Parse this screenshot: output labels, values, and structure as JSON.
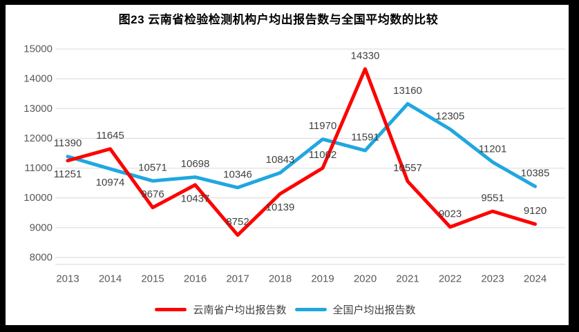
{
  "window": {
    "frame_color": "#000000",
    "background": "#ffffff"
  },
  "chart_data": {
    "type": "line",
    "title": "图23 云南省检验检测机构户均出报告数与全国平均数的比较",
    "categories": [
      "2013",
      "2014",
      "2015",
      "2016",
      "2017",
      "2018",
      "2019",
      "2020",
      "2021",
      "2022",
      "2023",
      "2024"
    ],
    "series": [
      {
        "name": "云南省户均出报告数",
        "color": "#FE0000",
        "values": [
          11251,
          11645,
          9676,
          10437,
          8752,
          10139,
          11002,
          14330,
          10557,
          9023,
          9551,
          9120
        ],
        "label_positions": [
          "below",
          "above",
          "above",
          "below",
          "above",
          "below",
          "above",
          "above",
          "above",
          "above",
          "above",
          "above"
        ]
      },
      {
        "name": "全国户均出报告数",
        "color": "#20A7E0",
        "values": [
          11390,
          10974,
          10571,
          10698,
          10346,
          10843,
          11970,
          11591,
          13160,
          12305,
          11201,
          10385
        ],
        "label_positions": [
          "above",
          "below",
          "above",
          "above",
          "above",
          "above",
          "above",
          "above",
          "above",
          "above",
          "above",
          "above"
        ]
      }
    ],
    "ylim": [
      8000,
      15000
    ],
    "ytick_step": 1000,
    "yticks": [
      15000,
      14000,
      13000,
      12000,
      11000,
      10000,
      9000,
      8000
    ],
    "grid": true,
    "show_data_labels": true,
    "legend_position": "bottom",
    "colors": {
      "grid": "#D9D9D9",
      "axis_line": "#D6D6D6",
      "tick_label": "#595959",
      "data_label": "#404040",
      "title": "#000000"
    }
  }
}
